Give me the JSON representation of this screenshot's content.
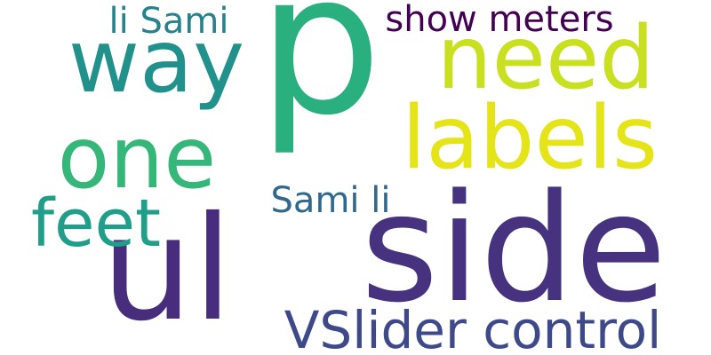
{
  "words": [
    {
      "text": "side",
      "color": "#46327e"
    },
    {
      "text": "p",
      "color": "#2ab07f"
    },
    {
      "text": "ul",
      "color": "#472d7b"
    },
    {
      "text": "labels",
      "color": "#e5e419"
    },
    {
      "text": "need",
      "color": "#c8e020"
    },
    {
      "text": "way",
      "color": "#21918c"
    },
    {
      "text": "one",
      "color": "#35b779"
    },
    {
      "text": "feet",
      "color": "#1f9e89"
    },
    {
      "text": "VSlider control",
      "color": "#3e4989"
    },
    {
      "text": "show meters",
      "color": "#440154"
    },
    {
      "text": "li Sami",
      "color": "#26828e"
    },
    {
      "text": "Sami li",
      "color": "#31688e"
    }
  ]
}
